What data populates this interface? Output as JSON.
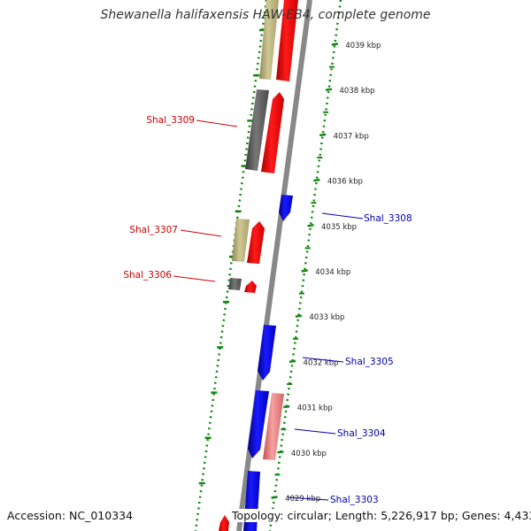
{
  "title": "Shewanella halifaxensis HAW-EB4, complete genome",
  "footer": {
    "accession": "Accession: NC_010334",
    "topology": "Topology: circular; Length: 5,226,917 bp; Genes: 4,433"
  },
  "colors": {
    "forward_cds": "#ff0000",
    "reverse_cds": "#0000ff",
    "forward_label": "#cc0000",
    "reverse_label": "#0000aa",
    "rna_or_gc": "#c9c28a",
    "other": "#666666",
    "pseudo": "#f08080",
    "tick": "#118811",
    "backbone": "#888888"
  },
  "scale": {
    "unit": "kbp",
    "ticks": [
      "4039 kbp",
      "4038 kbp",
      "4037 kbp",
      "4036 kbp",
      "4035 kbp",
      "4034 kbp",
      "4033 kbp",
      "4032 kbp",
      "4031 kbp",
      "4030 kbp",
      "4029 kbp"
    ]
  },
  "gene_labels": {
    "left": [
      "Shal_3309",
      "Shal_3307",
      "Shal_3306"
    ],
    "right": [
      "Shal_3308",
      "Shal_3305",
      "Shal_3304",
      "Shal_3303"
    ]
  }
}
